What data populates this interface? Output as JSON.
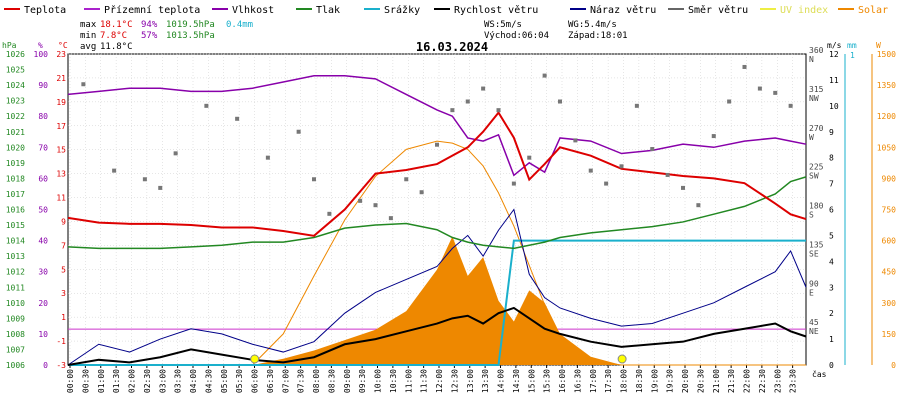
{
  "chart_data": {
    "type": "line",
    "title": "16.03.2024",
    "legend": [
      {
        "label": "Teplota",
        "color": "#dd0000"
      },
      {
        "label": "Přízemní teplota",
        "color": "#aa22cc"
      },
      {
        "label": "Vlhkost",
        "color": "#8800aa"
      },
      {
        "label": "Tlak",
        "color": "#228822"
      },
      {
        "label": "Srážky",
        "color": "#1ab0cc"
      },
      {
        "label": "Rychlost větru",
        "color": "#000000"
      },
      {
        "label": "Náraz větru",
        "color": "#000088"
      },
      {
        "label": "Směr větru",
        "color": "#666666"
      },
      {
        "label": "UV index",
        "color": "#eeee44"
      },
      {
        "label": "Solar",
        "color": "#ee8800"
      }
    ],
    "stats": {
      "max": "max",
      "max_temp": "18.1°C",
      "max_hum": "94%",
      "max_press": "1019.5hPa",
      "max_rain": "0.4mm",
      "min": "min",
      "min_temp": "7.8°C",
      "min_hum": "57%",
      "min_press": "1013.5hPa",
      "avg": "avg",
      "avg_temp": "11.8°C",
      "ws": "WS:5m/s",
      "wg": "WG:5.4m/s",
      "sunrise": "Východ:06:04",
      "sunset": "Západ:18:01"
    },
    "axis_units": {
      "pressure": "hPa",
      "humidity": "%",
      "temp": "°C",
      "wind": "m/s",
      "rain": "mm",
      "solar": "W",
      "xlabel": "čas"
    },
    "pressure_ticks": [
      "1026",
      "1025",
      "1024",
      "1023",
      "1022",
      "1021",
      "1020",
      "1019",
      "1018",
      "1017",
      "1016",
      "1015",
      "1014",
      "1013",
      "1012",
      "1011",
      "1010",
      "1009",
      "1008",
      "1007",
      "1006"
    ],
    "humidity_ticks": [
      "100",
      "90",
      "80",
      "70",
      "60",
      "50",
      "40",
      "30",
      "20",
      "10",
      "0"
    ],
    "temp_ticks": [
      "23",
      "21",
      "19",
      "17",
      "15",
      "13",
      "11",
      "9",
      "7",
      "5",
      "3",
      "1",
      "-1",
      "-3"
    ],
    "direction_ticks": [
      {
        "deg": "360",
        "dir": "N"
      },
      {
        "deg": "315",
        "dir": "NW"
      },
      {
        "deg": "270",
        "dir": "W"
      },
      {
        "deg": "225",
        "dir": "SW"
      },
      {
        "deg": "180",
        "dir": "S"
      },
      {
        "deg": "135",
        "dir": "SE"
      },
      {
        "deg": "90",
        "dir": "E"
      },
      {
        "deg": "45",
        "dir": "NE"
      }
    ],
    "wind_ticks": [
      "12",
      "11",
      "10",
      "9",
      "8",
      "7",
      "6",
      "5",
      "4",
      "3",
      "2",
      "1",
      "0"
    ],
    "rain_ticks": [
      "1"
    ],
    "solar_ticks": [
      "1500",
      "1350",
      "1200",
      "1050",
      "900",
      "750",
      "600",
      "450",
      "300",
      "150",
      "0"
    ],
    "time_ticks": [
      "00:00",
      "00:30",
      "01:00",
      "01:30",
      "02:00",
      "02:30",
      "03:00",
      "03:30",
      "04:00",
      "04:30",
      "05:00",
      "05:30",
      "06:00",
      "06:30",
      "07:00",
      "07:30",
      "08:00",
      "08:30",
      "09:00",
      "09:30",
      "10:00",
      "10:30",
      "11:00",
      "11:30",
      "12:00",
      "12:30",
      "13:00",
      "13:30",
      "14:00",
      "14:30",
      "15:00",
      "15:30",
      "16:00",
      "16:30",
      "17:00",
      "17:30",
      "18:00",
      "18:30",
      "19:00",
      "19:30",
      "20:00",
      "20:30",
      "21:00",
      "21:30",
      "22:00",
      "22:30",
      "23:00",
      "23:30"
    ],
    "ranges": {
      "temp": [
        -3,
        23
      ],
      "humidity": [
        0,
        100
      ],
      "pressure": [
        1006,
        1026
      ],
      "wind": [
        0,
        12
      ],
      "direction": [
        0,
        360
      ],
      "solar": [
        0,
        1500
      ],
      "rain": [
        0,
        1
      ]
    },
    "series_hours": [
      0,
      1,
      2,
      3,
      4,
      5,
      6,
      7,
      8,
      9,
      10,
      11,
      12,
      12.5,
      13,
      13.5,
      14,
      14.5,
      15,
      15.5,
      16,
      17,
      18,
      19,
      20,
      21,
      22,
      23,
      23.5,
      24
    ],
    "temperature": [
      9.3,
      8.9,
      8.8,
      8.8,
      8.7,
      8.5,
      8.5,
      8.2,
      7.8,
      10.0,
      13.0,
      13.3,
      13.8,
      14.5,
      15.2,
      16.5,
      18.1,
      16.0,
      12.5,
      13.8,
      15.2,
      14.5,
      13.4,
      13.1,
      12.8,
      12.6,
      12.2,
      10.5,
      9.6,
      9.2
    ],
    "humidity": [
      87,
      88,
      89,
      89,
      88,
      88,
      89,
      91,
      93,
      93,
      92,
      87,
      82,
      80,
      73,
      72,
      74,
      61,
      65,
      62,
      73,
      72,
      68,
      69,
      71,
      70,
      72,
      73,
      72,
      71
    ],
    "pressure": [
      1013.6,
      1013.5,
      1013.5,
      1013.5,
      1013.6,
      1013.7,
      1013.9,
      1013.9,
      1014.2,
      1014.8,
      1015.0,
      1015.1,
      1014.7,
      1014.2,
      1013.9,
      1013.7,
      1013.6,
      1013.5,
      1013.7,
      1013.9,
      1014.2,
      1014.5,
      1014.7,
      1014.9,
      1015.2,
      1015.7,
      1016.2,
      1017.0,
      1017.8,
      1018.1
    ],
    "wind_speed": [
      0,
      0.2,
      0.1,
      0.3,
      0.6,
      0.4,
      0.2,
      0.1,
      0.3,
      0.8,
      1.0,
      1.3,
      1.6,
      1.8,
      1.9,
      1.6,
      2.0,
      2.2,
      1.8,
      1.4,
      1.2,
      0.9,
      0.7,
      0.8,
      0.9,
      1.2,
      1.4,
      1.6,
      1.3,
      1.1
    ],
    "wind_gust": [
      0,
      0.8,
      0.5,
      1.0,
      1.4,
      1.2,
      0.8,
      0.5,
      0.9,
      2.0,
      2.8,
      3.3,
      3.8,
      4.5,
      5.0,
      4.2,
      5.2,
      6.0,
      3.5,
      2.6,
      2.2,
      1.8,
      1.5,
      1.6,
      2.0,
      2.4,
      3.0,
      3.6,
      4.4,
      3.0
    ],
    "direction_hours": [
      0.5,
      1.5,
      2.5,
      3,
      3.5,
      4.5,
      5.5,
      6.5,
      7.5,
      8,
      8.5,
      9.5,
      10,
      10.5,
      11,
      11.5,
      12,
      12.5,
      13,
      13.5,
      14,
      14.5,
      15,
      15.5,
      16,
      16.5,
      17,
      17.5,
      18,
      18.5,
      19,
      19.5,
      20,
      20.5,
      21,
      21.5,
      22,
      22.5,
      23,
      23.5
    ],
    "direction_deg": [
      325,
      225,
      215,
      205,
      245,
      300,
      285,
      240,
      270,
      215,
      175,
      190,
      185,
      170,
      215,
      200,
      255,
      295,
      305,
      320,
      295,
      210,
      240,
      335,
      305,
      260,
      225,
      210,
      230,
      300,
      250,
      220,
      205,
      185,
      265,
      305,
      345,
      320,
      315,
      300
    ],
    "solar": [
      0,
      0,
      0,
      0,
      0,
      0,
      0,
      30,
      70,
      120,
      170,
      260,
      460,
      620,
      430,
      520,
      310,
      210,
      360,
      300,
      150,
      40,
      0,
      0,
      0,
      0,
      0,
      0,
      0,
      0
    ],
    "sun_curve": [
      0,
      0,
      0,
      0,
      0,
      0,
      0,
      150,
      430,
      700,
      910,
      1040,
      1080,
      1070,
      1040,
      960,
      830,
      670,
      480,
      290,
      120,
      20,
      0,
      0,
      0,
      0,
      0,
      0,
      0,
      0
    ],
    "rain_mm": [
      0,
      0,
      0,
      0,
      0,
      0,
      0,
      0,
      0,
      0,
      0,
      0,
      0,
      0,
      0,
      0,
      0,
      0.4,
      0.4,
      0.4,
      0.4,
      0.4,
      0.4,
      0.4,
      0.4,
      0.4,
      0.4,
      0.4,
      0.4,
      0.4
    ],
    "zero_temp_line": 0
  }
}
